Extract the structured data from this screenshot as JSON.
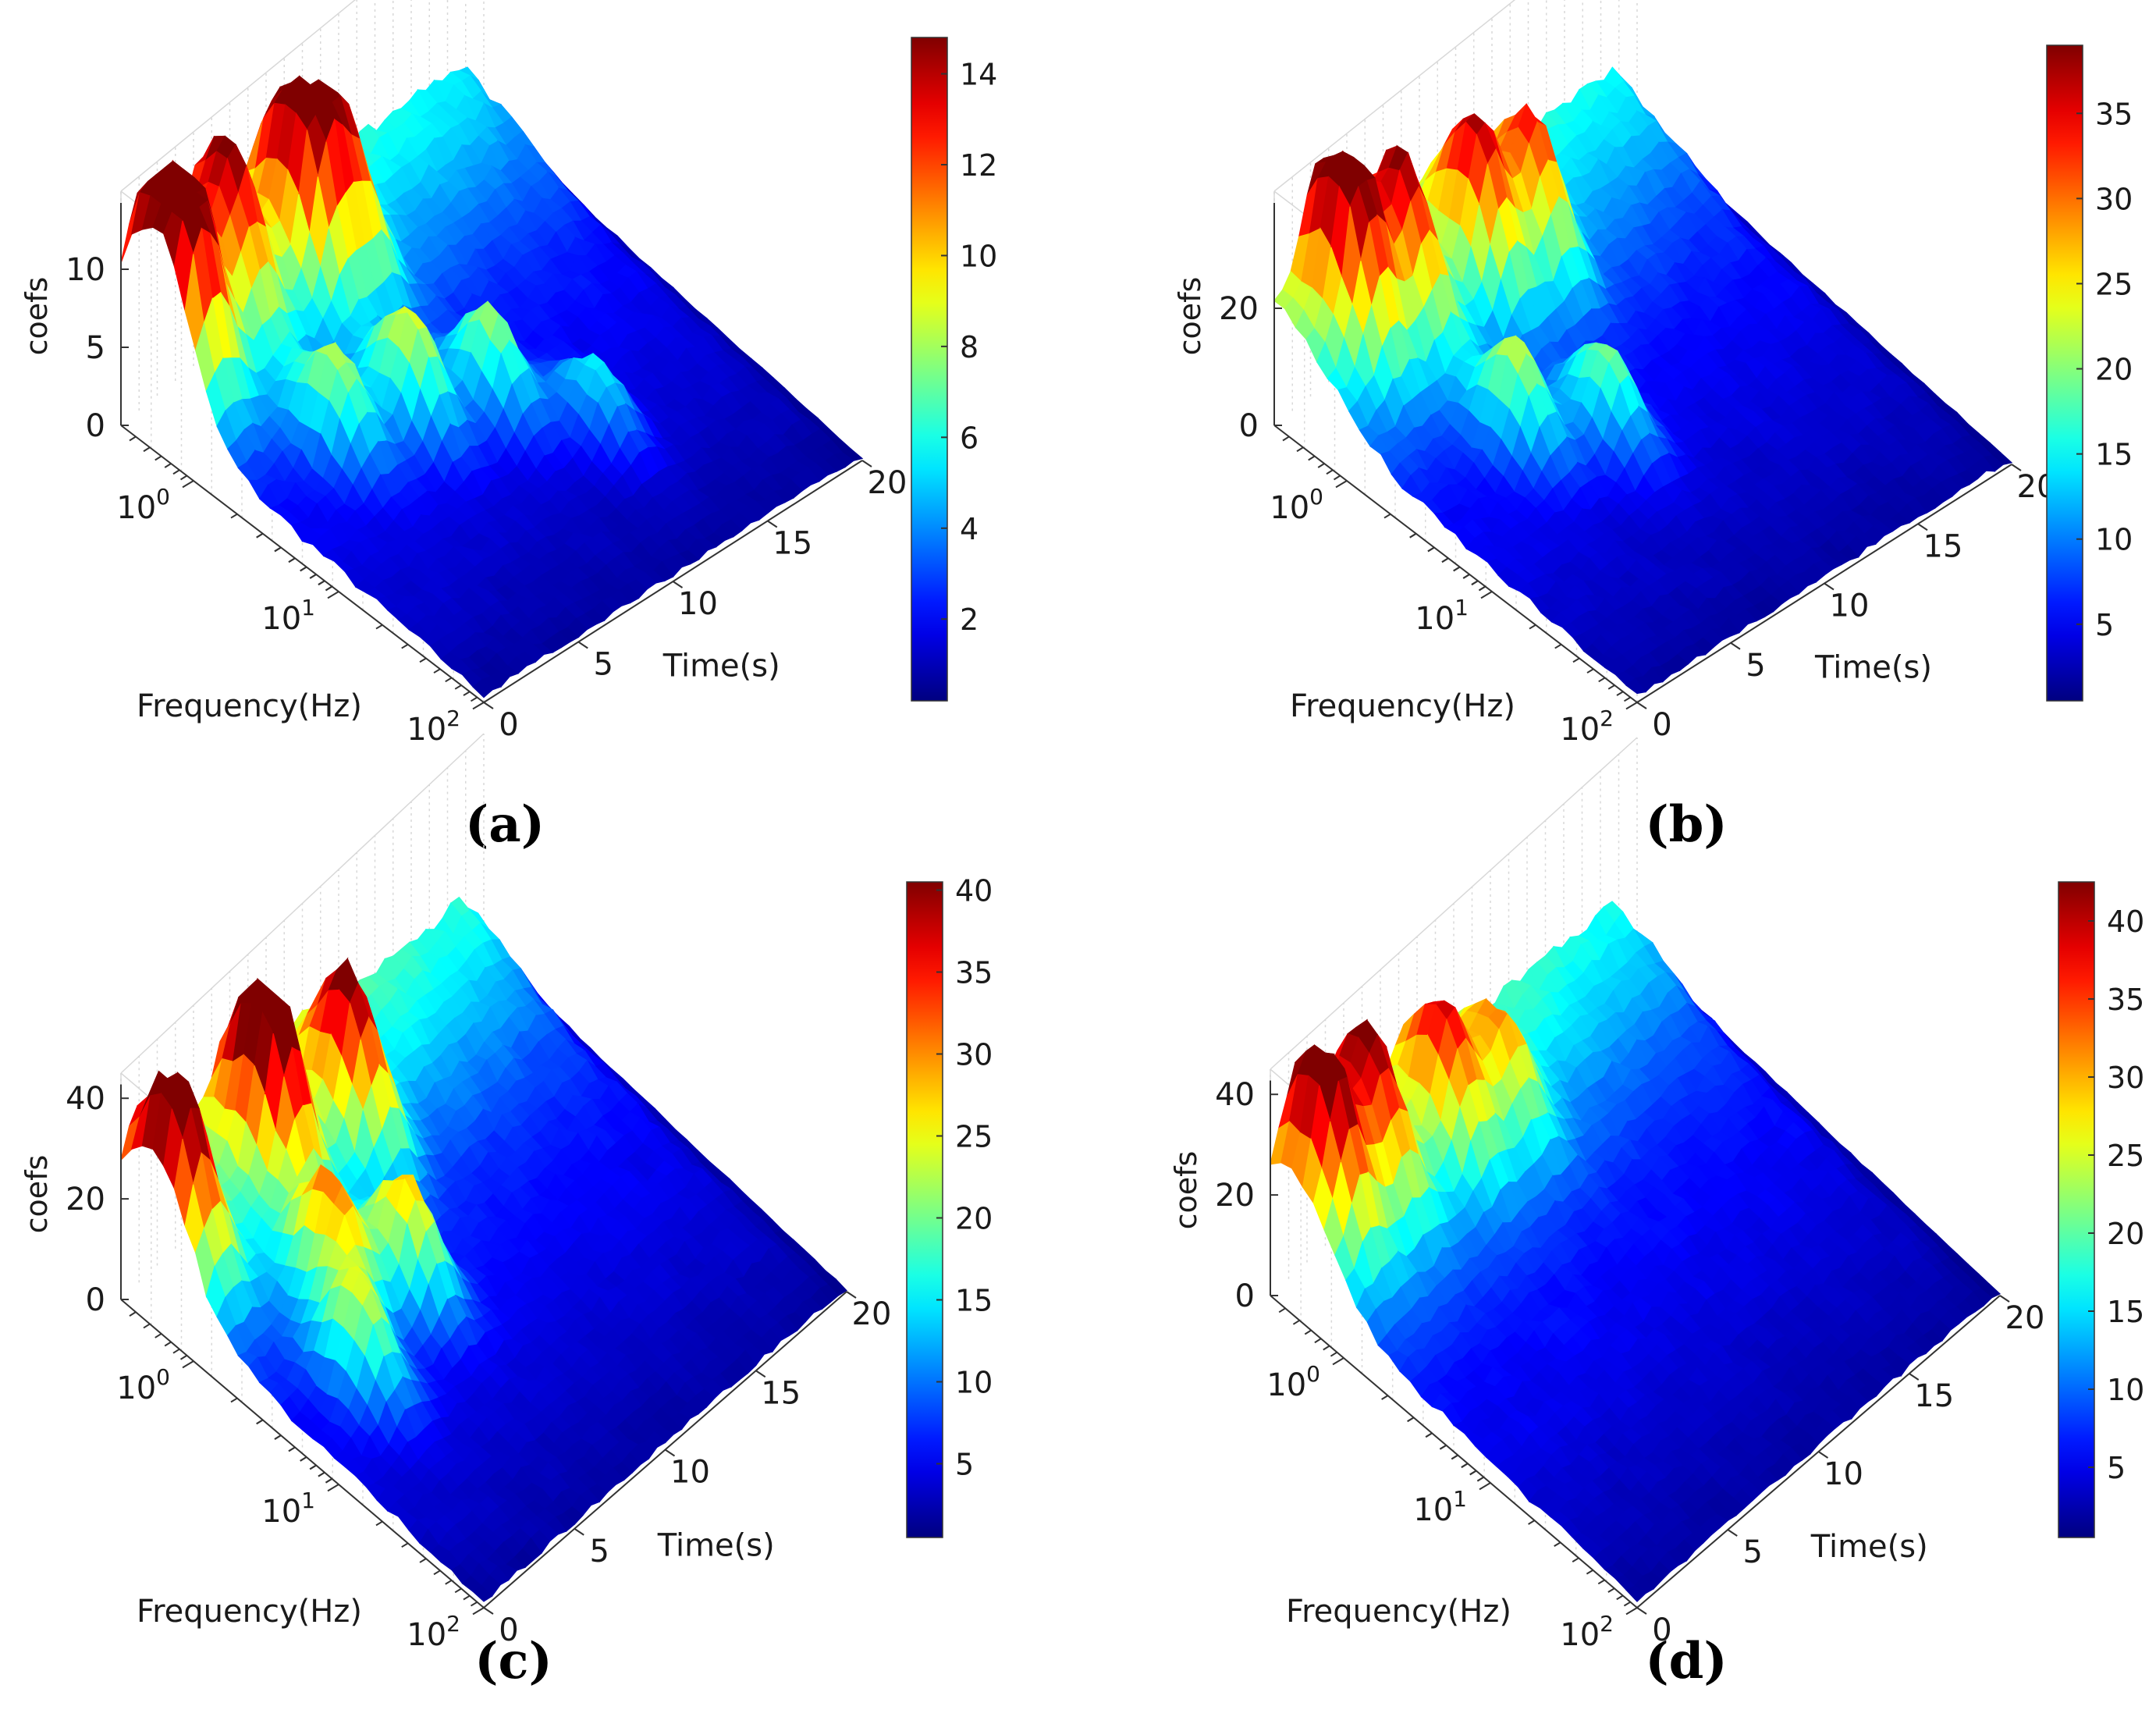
{
  "chart_data": [
    {
      "type": "surface",
      "panel": "(a)",
      "ylabel": "Frequency(Hz)",
      "xlabel": "Time(s)",
      "zlabel": "coefs",
      "x_ticks": [
        "0",
        "5",
        "10",
        "15",
        "20"
      ],
      "y_ticks": [
        "10^0",
        "10^1",
        "10^2"
      ],
      "z_ticks": [
        "0",
        "5",
        "10"
      ],
      "xlim": [
        0,
        20
      ],
      "ylim_log10": [
        -0.5,
        2
      ],
      "zlim": [
        0,
        15
      ],
      "colorbar": {
        "range": [
          0.2,
          14.8
        ],
        "ticks": [
          "2",
          "4",
          "6",
          "8",
          "10",
          "12",
          "14"
        ]
      },
      "peaks": [
        {
          "t": 0.8,
          "f": 0.6,
          "z": 13.5
        },
        {
          "t": 2.0,
          "f": 0.5,
          "z": 9.5
        },
        {
          "t": 4.5,
          "f": 0.5,
          "z": 11
        },
        {
          "t": 7.8,
          "f": 0.6,
          "z": 14.5
        },
        {
          "t": 9.5,
          "f": 0.7,
          "z": 10
        },
        {
          "t": 4.0,
          "f": 3.0,
          "z": 8
        },
        {
          "t": 7.0,
          "f": 4.0,
          "z": 9
        },
        {
          "t": 10.0,
          "f": 6.0,
          "z": 8
        },
        {
          "t": 12.5,
          "f": 15.0,
          "z": 6
        }
      ]
    },
    {
      "type": "surface",
      "panel": "(b)",
      "ylabel": "Frequency(Hz)",
      "xlabel": "Time(s)",
      "zlabel": "coefs",
      "x_ticks": [
        "0",
        "5",
        "10",
        "15",
        "20"
      ],
      "y_ticks": [
        "10^0",
        "10^1",
        "10^2"
      ],
      "z_ticks": [
        "0",
        "20"
      ],
      "xlim": [
        0,
        20
      ],
      "ylim_log10": [
        -0.5,
        2
      ],
      "zlim": [
        0,
        40
      ],
      "colorbar": {
        "range": [
          0.5,
          39
        ],
        "ticks": [
          "5",
          "10",
          "15",
          "20",
          "25",
          "30",
          "35"
        ]
      },
      "peaks": [
        {
          "t": 2.5,
          "f": 0.5,
          "z": 38
        },
        {
          "t": 5.0,
          "f": 0.6,
          "z": 28
        },
        {
          "t": 8.5,
          "f": 0.7,
          "z": 30
        },
        {
          "t": 11.0,
          "f": 0.8,
          "z": 27
        },
        {
          "t": 5.0,
          "f": 3.5,
          "z": 22
        },
        {
          "t": 8.0,
          "f": 6.0,
          "z": 20
        }
      ]
    },
    {
      "type": "surface",
      "panel": "(c)",
      "ylabel": "Frequency(Hz)",
      "xlabel": "Time(s)",
      "zlabel": "coefs",
      "x_ticks": [
        "0",
        "5",
        "10",
        "15",
        "20"
      ],
      "y_ticks": [
        "10^0",
        "10^1",
        "10^2"
      ],
      "z_ticks": [
        "0",
        "20",
        "40"
      ],
      "xlim": [
        0,
        20
      ],
      "ylim_log10": [
        -0.5,
        2
      ],
      "zlim": [
        0,
        45
      ],
      "colorbar": {
        "range": [
          0.5,
          40.5
        ],
        "ticks": [
          "5",
          "10",
          "15",
          "20",
          "25",
          "30",
          "35",
          "40"
        ]
      },
      "peaks": [
        {
          "t": 1.0,
          "f": 0.6,
          "z": 36
        },
        {
          "t": 6.0,
          "f": 0.6,
          "z": 42
        },
        {
          "t": 9.5,
          "f": 0.8,
          "z": 35
        },
        {
          "t": 4.5,
          "f": 2.5,
          "z": 30
        },
        {
          "t": 7.0,
          "f": 4.0,
          "z": 28
        },
        {
          "t": 3.0,
          "f": 6.0,
          "z": 24
        }
      ]
    },
    {
      "type": "surface",
      "panel": "(d)",
      "ylabel": "Frequency(Hz)",
      "xlabel": "Time(s)",
      "zlabel": "coefs",
      "x_ticks": [
        "0",
        "5",
        "10",
        "15",
        "20"
      ],
      "y_ticks": [
        "10^0",
        "10^1",
        "10^2"
      ],
      "z_ticks": [
        "0",
        "20",
        "40"
      ],
      "xlim": [
        0,
        20
      ],
      "ylim_log10": [
        -0.5,
        2
      ],
      "zlim": [
        0,
        45
      ],
      "colorbar": {
        "range": [
          0.5,
          42.5
        ],
        "ticks": [
          "5",
          "10",
          "15",
          "20",
          "25",
          "30",
          "35",
          "40"
        ]
      },
      "peaks": [
        {
          "t": 1.5,
          "f": 0.5,
          "z": 36
        },
        {
          "t": 4.0,
          "f": 0.5,
          "z": 30
        },
        {
          "t": 7.5,
          "f": 0.6,
          "z": 28
        },
        {
          "t": 10.0,
          "f": 0.7,
          "z": 22
        }
      ]
    }
  ]
}
